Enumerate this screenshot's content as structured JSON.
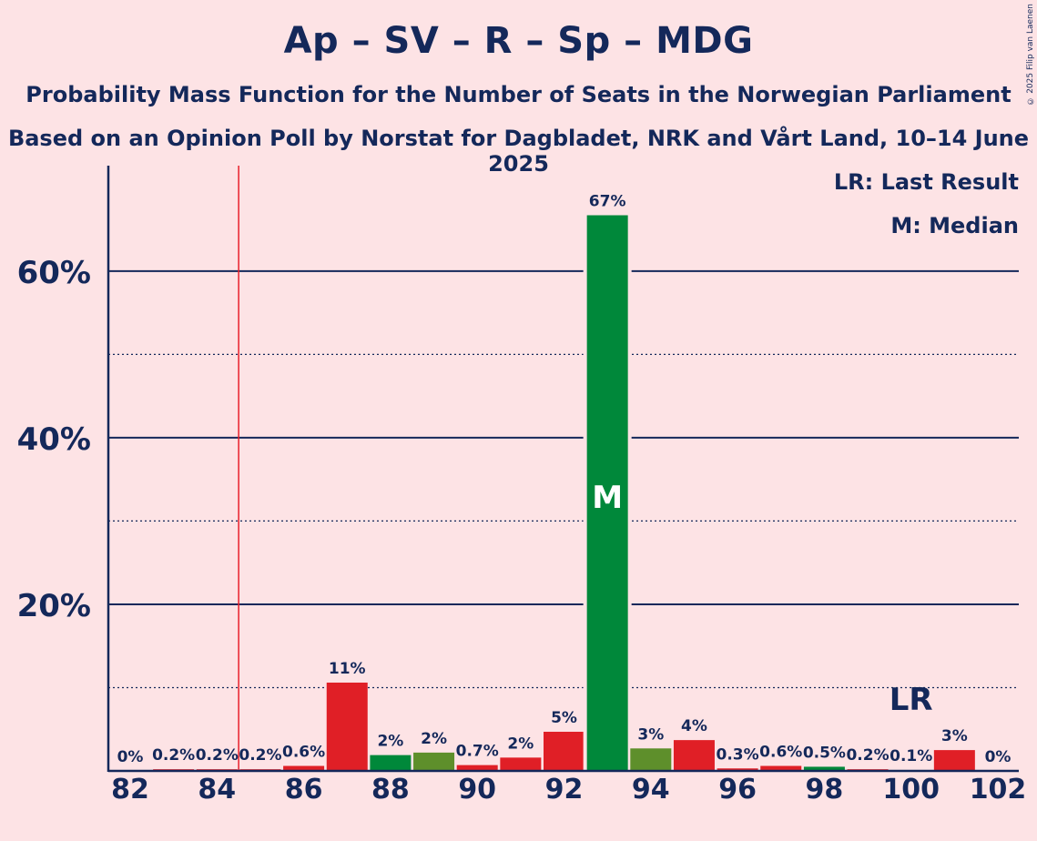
{
  "title": "Ap – SV – R – Sp – MDG",
  "subtitle": "Probability Mass Function for the Number of Seats in the Norwegian Parliament",
  "subtitle2": "Based on an Opinion Poll by Norstat for Dagbladet, NRK and Vårt Land, 10–14 June 2025",
  "copyright": "© 2025 Filip van Laenen",
  "legend": {
    "last_result": "LR: Last Result",
    "median": "M: Median"
  },
  "colors": {
    "background": "#fde3e5",
    "axis": "#14285a",
    "last_result_line": "#e8202a",
    "red": "#e01f26",
    "green": "#00883a",
    "olive": "#5e8f2b"
  },
  "chart_data": {
    "type": "bar",
    "x": [
      82,
      83,
      84,
      85,
      86,
      87,
      88,
      89,
      90,
      91,
      92,
      93,
      94,
      95,
      96,
      97,
      98,
      99,
      100,
      101,
      102
    ],
    "values": [
      0,
      0.2,
      0.2,
      0.2,
      0.6,
      10.6,
      1.9,
      2.2,
      0.7,
      1.6,
      4.7,
      66.7,
      2.7,
      3.7,
      0.3,
      0.6,
      0.5,
      0.2,
      0.1,
      2.5,
      0
    ],
    "labels": [
      "0%",
      "0.2%",
      "0.2%",
      "0.2%",
      "0.6%",
      "11%",
      "2%",
      "2%",
      "0.7%",
      "2%",
      "5%",
      "67%",
      "3%",
      "4%",
      "0.3%",
      "0.6%",
      "0.5%",
      "0.2%",
      "0.1%",
      "3%",
      "0%"
    ],
    "bar_colors": [
      "red",
      "red",
      "red",
      "red",
      "red",
      "red",
      "green",
      "olive",
      "red",
      "red",
      "red",
      "green",
      "olive",
      "red",
      "red",
      "red",
      "green",
      "red",
      "red",
      "red",
      "red"
    ],
    "x_ticks": [
      82,
      84,
      86,
      88,
      90,
      92,
      94,
      96,
      98,
      100,
      102
    ],
    "y_ticks": [
      {
        "value": 20,
        "label": "20%"
      },
      {
        "value": 40,
        "label": "40%"
      },
      {
        "value": 60,
        "label": "60%"
      }
    ],
    "y_minor_gridlines": [
      10,
      30,
      50
    ],
    "ylim": [
      0,
      72
    ],
    "last_result": 84.5,
    "last_result_label": "LR",
    "last_result_label_at": 100,
    "median": 93,
    "median_label": "M"
  }
}
